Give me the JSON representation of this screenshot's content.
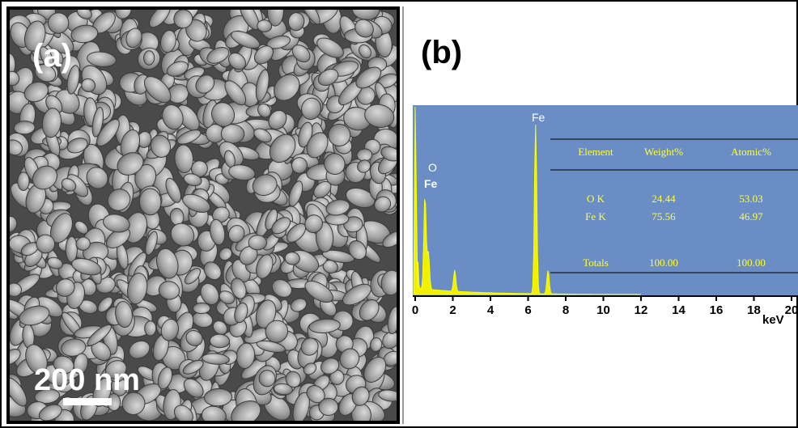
{
  "panels": [
    {
      "label": "(a)",
      "scale_bar": "200 nm"
    },
    {
      "label": "(b)",
      "peaks": [
        {
          "label": "O"
        },
        {
          "label": "Fe"
        },
        {
          "label": "Fe"
        }
      ],
      "x_ticks": [
        0,
        2,
        4,
        6,
        8,
        10,
        12,
        14,
        16,
        18,
        20
      ],
      "x_label": "keV",
      "table": {
        "header": [
          "Element",
          "Weight%",
          "Atomic%"
        ],
        "rows": [
          [
            "O K",
            "24.44",
            "53.03"
          ],
          [
            "Fe K",
            "75.56",
            "46.97"
          ],
          [
            "Totals",
            "100.00",
            "100.00"
          ]
        ]
      }
    }
  ]
}
